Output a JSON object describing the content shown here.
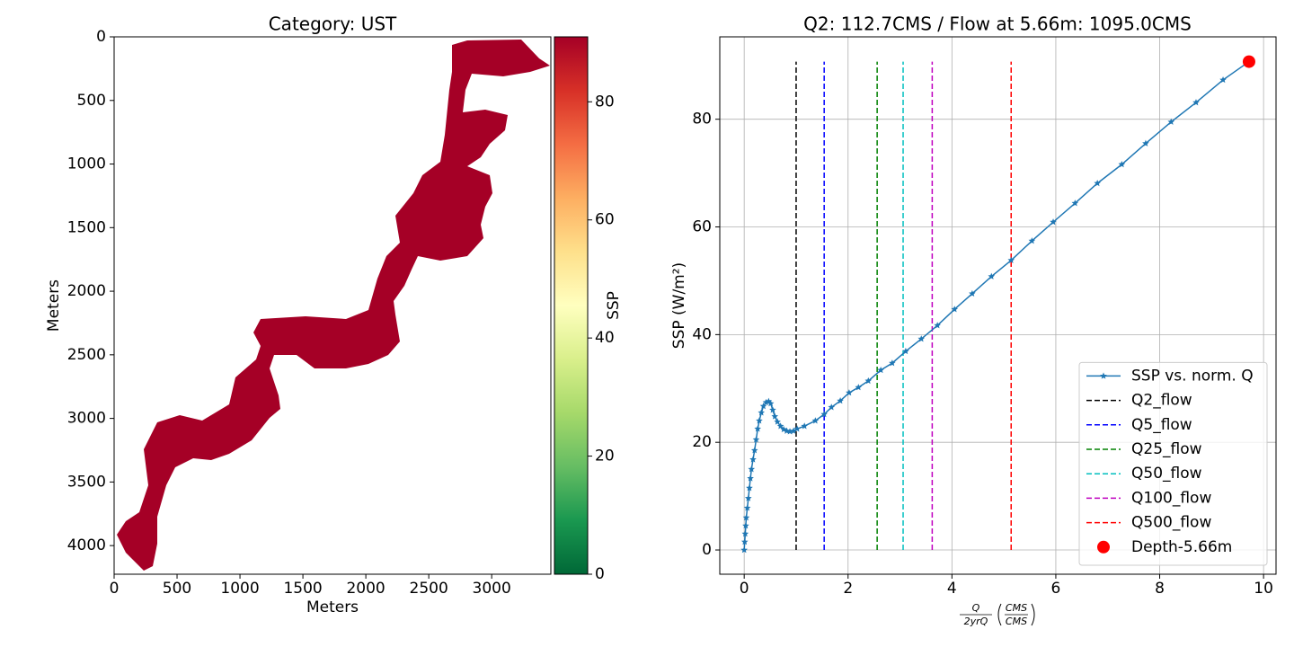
{
  "chart_data": [
    {
      "type": "image",
      "title": "Category: UST",
      "xlabel": "Meters",
      "ylabel": "Meters",
      "xlim": [
        0,
        3470
      ],
      "ylim": [
        4225,
        0
      ],
      "xticks": [
        0,
        500,
        1000,
        1500,
        2000,
        2500,
        3000
      ],
      "yticks": [
        0,
        500,
        1000,
        1500,
        2000,
        2500,
        3000,
        3500,
        4000
      ],
      "color": "#a50026",
      "colorbar": {
        "label": "SSP",
        "lim": [
          0,
          91
        ],
        "ticks": [
          0,
          20,
          40,
          60,
          80
        ],
        "colors": [
          "#006837",
          "#1a9850",
          "#66bd63",
          "#a6d96a",
          "#d9ef8b",
          "#ffffbf",
          "#fee08b",
          "#fdae61",
          "#f46d43",
          "#d73027",
          "#a50026"
        ]
      }
    },
    {
      "type": "line",
      "title": "Q2: 112.7CMS / Flow at 5.66m: 1095.0CMS",
      "xlabel": {
        "numerator": "Q",
        "denominator": "2yrQ",
        "unit_numerator": "CMS",
        "unit_denominator": "CMS"
      },
      "ylabel": "SSP (W/m²)",
      "xlim": [
        -0.47,
        10.24
      ],
      "ylim": [
        -4.5,
        95.3
      ],
      "xticks": [
        0,
        2,
        4,
        6,
        8,
        10
      ],
      "yticks": [
        0,
        20,
        40,
        60,
        80
      ],
      "grid": true,
      "legend": "lower right",
      "x": [
        0,
        0.01,
        0.02,
        0.03,
        0.04,
        0.06,
        0.08,
        0.1,
        0.12,
        0.14,
        0.17,
        0.2,
        0.23,
        0.26,
        0.29,
        0.33,
        0.37,
        0.42,
        0.47,
        0.51,
        0.55,
        0.59,
        0.64,
        0.7,
        0.76,
        0.82,
        0.88,
        0.95,
        1.02,
        1.16,
        1.37,
        1.54,
        1.68,
        1.85,
        2.02,
        2.2,
        2.39,
        2.63,
        2.85,
        3.11,
        3.41,
        3.72,
        4.05,
        4.39,
        4.76,
        5.14,
        5.54,
        5.95,
        6.37,
        6.8,
        7.27,
        7.73,
        8.22,
        8.7,
        9.22,
        9.72
      ],
      "series": [
        {
          "name": "SSP vs. norm. Q",
          "color": "#1f77b4",
          "values": [
            0,
            1.5,
            3,
            4.5,
            6,
            7.8,
            9.6,
            11.5,
            13.3,
            15,
            16.8,
            18.5,
            20.5,
            22.5,
            24,
            25.5,
            26.7,
            27.4,
            27.6,
            27.2,
            26,
            24.8,
            23.8,
            23,
            22.4,
            22.1,
            22,
            22.1,
            22.5,
            23,
            24,
            25.2,
            26.5,
            27.7,
            29.2,
            30.2,
            31.4,
            33.4,
            34.7,
            36.9,
            39.2,
            41.7,
            44.7,
            47.6,
            50.8,
            53.8,
            57.4,
            60.9,
            64.4,
            68.1,
            71.6,
            75.5,
            79.5,
            83.1,
            87.3,
            90.7
          ]
        }
      ],
      "vline_range": [
        0,
        90.7
      ],
      "vlines": [
        {
          "name": "Q2_flow",
          "x": 1.0,
          "color": "#000000"
        },
        {
          "name": "Q5_flow",
          "x": 1.54,
          "color": "#0000ff"
        },
        {
          "name": "Q25_flow",
          "x": 2.56,
          "color": "#008000"
        },
        {
          "name": "Q50_flow",
          "x": 3.06,
          "color": "#00bfbf"
        },
        {
          "name": "Q100_flow",
          "x": 3.62,
          "color": "#bf00bf"
        },
        {
          "name": "Q500_flow",
          "x": 5.14,
          "color": "#ff0000"
        }
      ],
      "points": [
        {
          "name": "Depth-5.66m",
          "x": 9.72,
          "y": 90.7,
          "color": "#ff0000"
        }
      ]
    }
  ]
}
